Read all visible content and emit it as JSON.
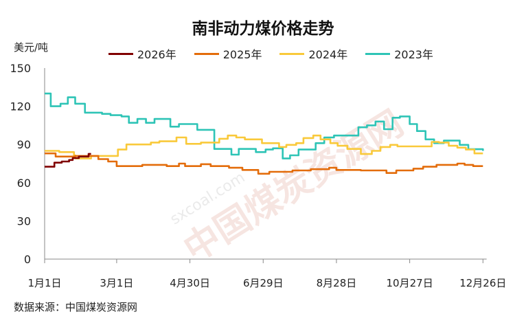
{
  "chart_data": {
    "type": "line",
    "title": "南非动力煤价格走势",
    "ylabel": "美元/吨",
    "xlabel": "",
    "ylim": [
      0,
      150
    ],
    "yticks": [
      0,
      30,
      60,
      90,
      120,
      150
    ],
    "xlim_days": [
      0,
      362
    ],
    "xticks": [
      {
        "day": 0,
        "label": "1月1日"
      },
      {
        "day": 59,
        "label": "3月1日"
      },
      {
        "day": 119,
        "label": "4月30日"
      },
      {
        "day": 179,
        "label": "6月29日"
      },
      {
        "day": 239,
        "label": "8月28日"
      },
      {
        "day": 299,
        "label": "10月27日"
      },
      {
        "day": 359,
        "label": "12月26日"
      }
    ],
    "grid": false,
    "legend_position": "top",
    "step": true,
    "series": [
      {
        "name": "2026年",
        "color": "#800000",
        "points": [
          [
            0,
            72.5
          ],
          [
            8,
            75.7
          ],
          [
            14,
            76.6
          ],
          [
            20,
            77.8
          ],
          [
            23,
            79.3
          ],
          [
            28,
            80.5
          ],
          [
            36,
            82.6
          ],
          [
            38,
            82.6
          ]
        ]
      },
      {
        "name": "2025年",
        "color": "#E36C0A",
        "points": [
          [
            0,
            83
          ],
          [
            9,
            80.5
          ],
          [
            25,
            81
          ],
          [
            44,
            78.5
          ],
          [
            52,
            76.6
          ],
          [
            59,
            73
          ],
          [
            80,
            74
          ],
          [
            100,
            73
          ],
          [
            110,
            75
          ],
          [
            115,
            73
          ],
          [
            128,
            74.5
          ],
          [
            136,
            73
          ],
          [
            151,
            71.7
          ],
          [
            162,
            70
          ],
          [
            175,
            67
          ],
          [
            184,
            68.5
          ],
          [
            203,
            69.6
          ],
          [
            218,
            70.6
          ],
          [
            233,
            71.7
          ],
          [
            239,
            70
          ],
          [
            259,
            69.6
          ],
          [
            280,
            67.6
          ],
          [
            288,
            69.6
          ],
          [
            302,
            71
          ],
          [
            310,
            72.5
          ],
          [
            321,
            74
          ],
          [
            338,
            75
          ],
          [
            344,
            74
          ],
          [
            351,
            73
          ],
          [
            359,
            73
          ]
        ]
      },
      {
        "name": "2024年",
        "color": "#F9C93A",
        "points": [
          [
            0,
            85
          ],
          [
            12,
            84
          ],
          [
            24,
            81.5
          ],
          [
            25,
            79
          ],
          [
            38,
            81
          ],
          [
            60,
            86
          ],
          [
            67,
            90
          ],
          [
            87,
            91.5
          ],
          [
            94,
            92.5
          ],
          [
            108,
            95.5
          ],
          [
            116,
            90.5
          ],
          [
            128,
            91.5
          ],
          [
            143,
            94.5
          ],
          [
            150,
            97
          ],
          [
            157,
            95.5
          ],
          [
            164,
            94
          ],
          [
            178,
            91
          ],
          [
            192,
            88
          ],
          [
            198,
            89.7
          ],
          [
            206,
            91
          ],
          [
            212,
            95
          ],
          [
            220,
            97
          ],
          [
            226,
            94
          ],
          [
            234,
            91
          ],
          [
            240,
            89
          ],
          [
            248,
            86.5
          ],
          [
            259,
            82.5
          ],
          [
            268,
            85
          ],
          [
            275,
            88
          ],
          [
            283,
            89.7
          ],
          [
            289,
            88.5
          ],
          [
            317,
            92
          ],
          [
            323,
            91.5
          ],
          [
            331,
            89
          ],
          [
            338,
            87.5
          ],
          [
            345,
            86
          ],
          [
            352,
            83
          ],
          [
            359,
            83
          ]
        ]
      },
      {
        "name": "2023年",
        "color": "#2EC4B6",
        "points": [
          [
            0,
            130
          ],
          [
            5,
            120
          ],
          [
            13,
            122
          ],
          [
            19,
            127
          ],
          [
            25,
            122
          ],
          [
            33,
            115
          ],
          [
            47,
            114
          ],
          [
            54,
            113
          ],
          [
            63,
            112
          ],
          [
            69,
            107
          ],
          [
            76,
            110
          ],
          [
            83,
            107
          ],
          [
            90,
            110
          ],
          [
            103,
            104
          ],
          [
            110,
            106
          ],
          [
            125,
            101.5
          ],
          [
            139,
            86.5
          ],
          [
            153,
            82
          ],
          [
            159,
            86.5
          ],
          [
            173,
            84
          ],
          [
            181,
            86
          ],
          [
            187,
            87
          ],
          [
            195,
            79
          ],
          [
            201,
            81.5
          ],
          [
            208,
            86
          ],
          [
            222,
            91
          ],
          [
            229,
            95.5
          ],
          [
            237,
            97
          ],
          [
            257,
            103.5
          ],
          [
            264,
            105
          ],
          [
            271,
            108
          ],
          [
            278,
            102
          ],
          [
            285,
            111
          ],
          [
            291,
            112
          ],
          [
            299,
            106
          ],
          [
            305,
            100.5
          ],
          [
            312,
            94
          ],
          [
            319,
            91
          ],
          [
            327,
            93
          ],
          [
            340,
            89.7
          ],
          [
            347,
            86.3
          ],
          [
            359,
            85
          ]
        ]
      }
    ]
  },
  "source": "数据来源：中国煤炭资源网",
  "watermark": {
    "text": "中国煤炭资源网",
    "url_text": "sxcoal.com"
  }
}
